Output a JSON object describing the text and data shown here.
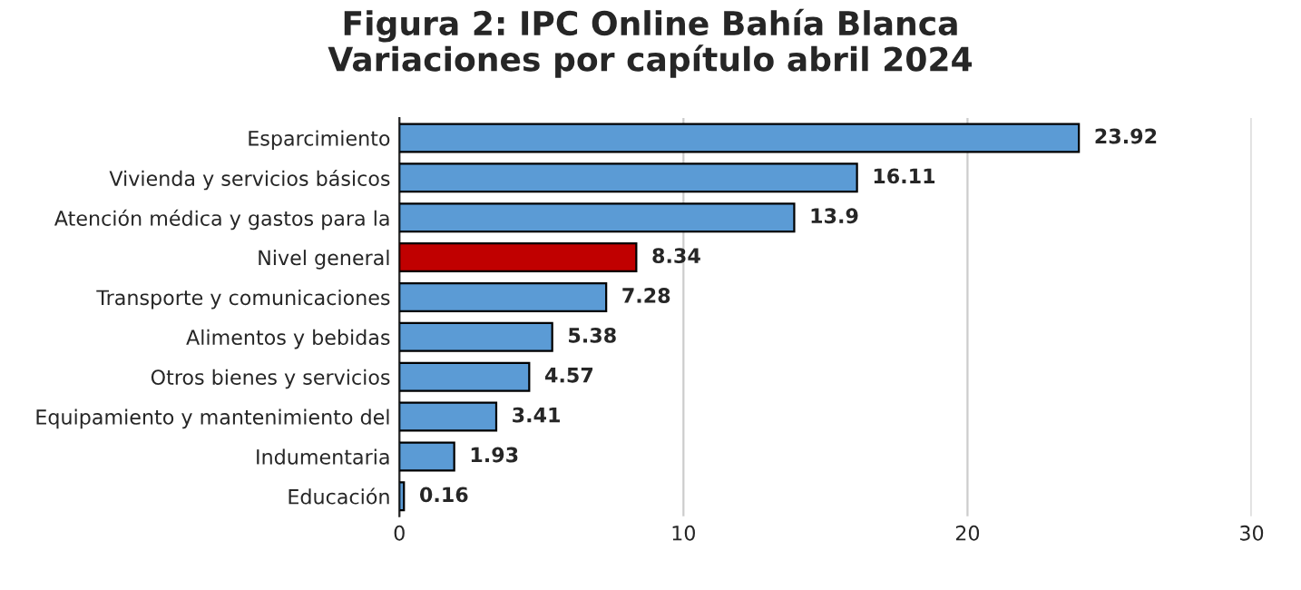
{
  "chart_data": {
    "type": "bar",
    "orientation": "horizontal",
    "title": "Figura 2: IPC Online Bahía Blanca\nVariaciones por capítulo abril 2024",
    "categories": [
      "Esparcimiento",
      "Vivienda y servicios básicos",
      "Atención médica y gastos para la",
      "Nivel general",
      "Transporte y comunicaciones",
      "Alimentos y bebidas",
      "Otros bienes y servicios",
      "Equipamiento y mantenimiento del",
      "Indumentaria",
      "Educación"
    ],
    "values": [
      23.92,
      16.11,
      13.9,
      8.34,
      7.28,
      5.38,
      4.57,
      3.41,
      1.93,
      0.16
    ],
    "colors": [
      "#5b9bd5",
      "#5b9bd5",
      "#5b9bd5",
      "#c00000",
      "#5b9bd5",
      "#5b9bd5",
      "#5b9bd5",
      "#5b9bd5",
      "#5b9bd5",
      "#5b9bd5"
    ],
    "xlim": [
      0,
      30
    ],
    "xticks": [
      0,
      10,
      20,
      30
    ],
    "grid": "x",
    "data_labels": true
  }
}
